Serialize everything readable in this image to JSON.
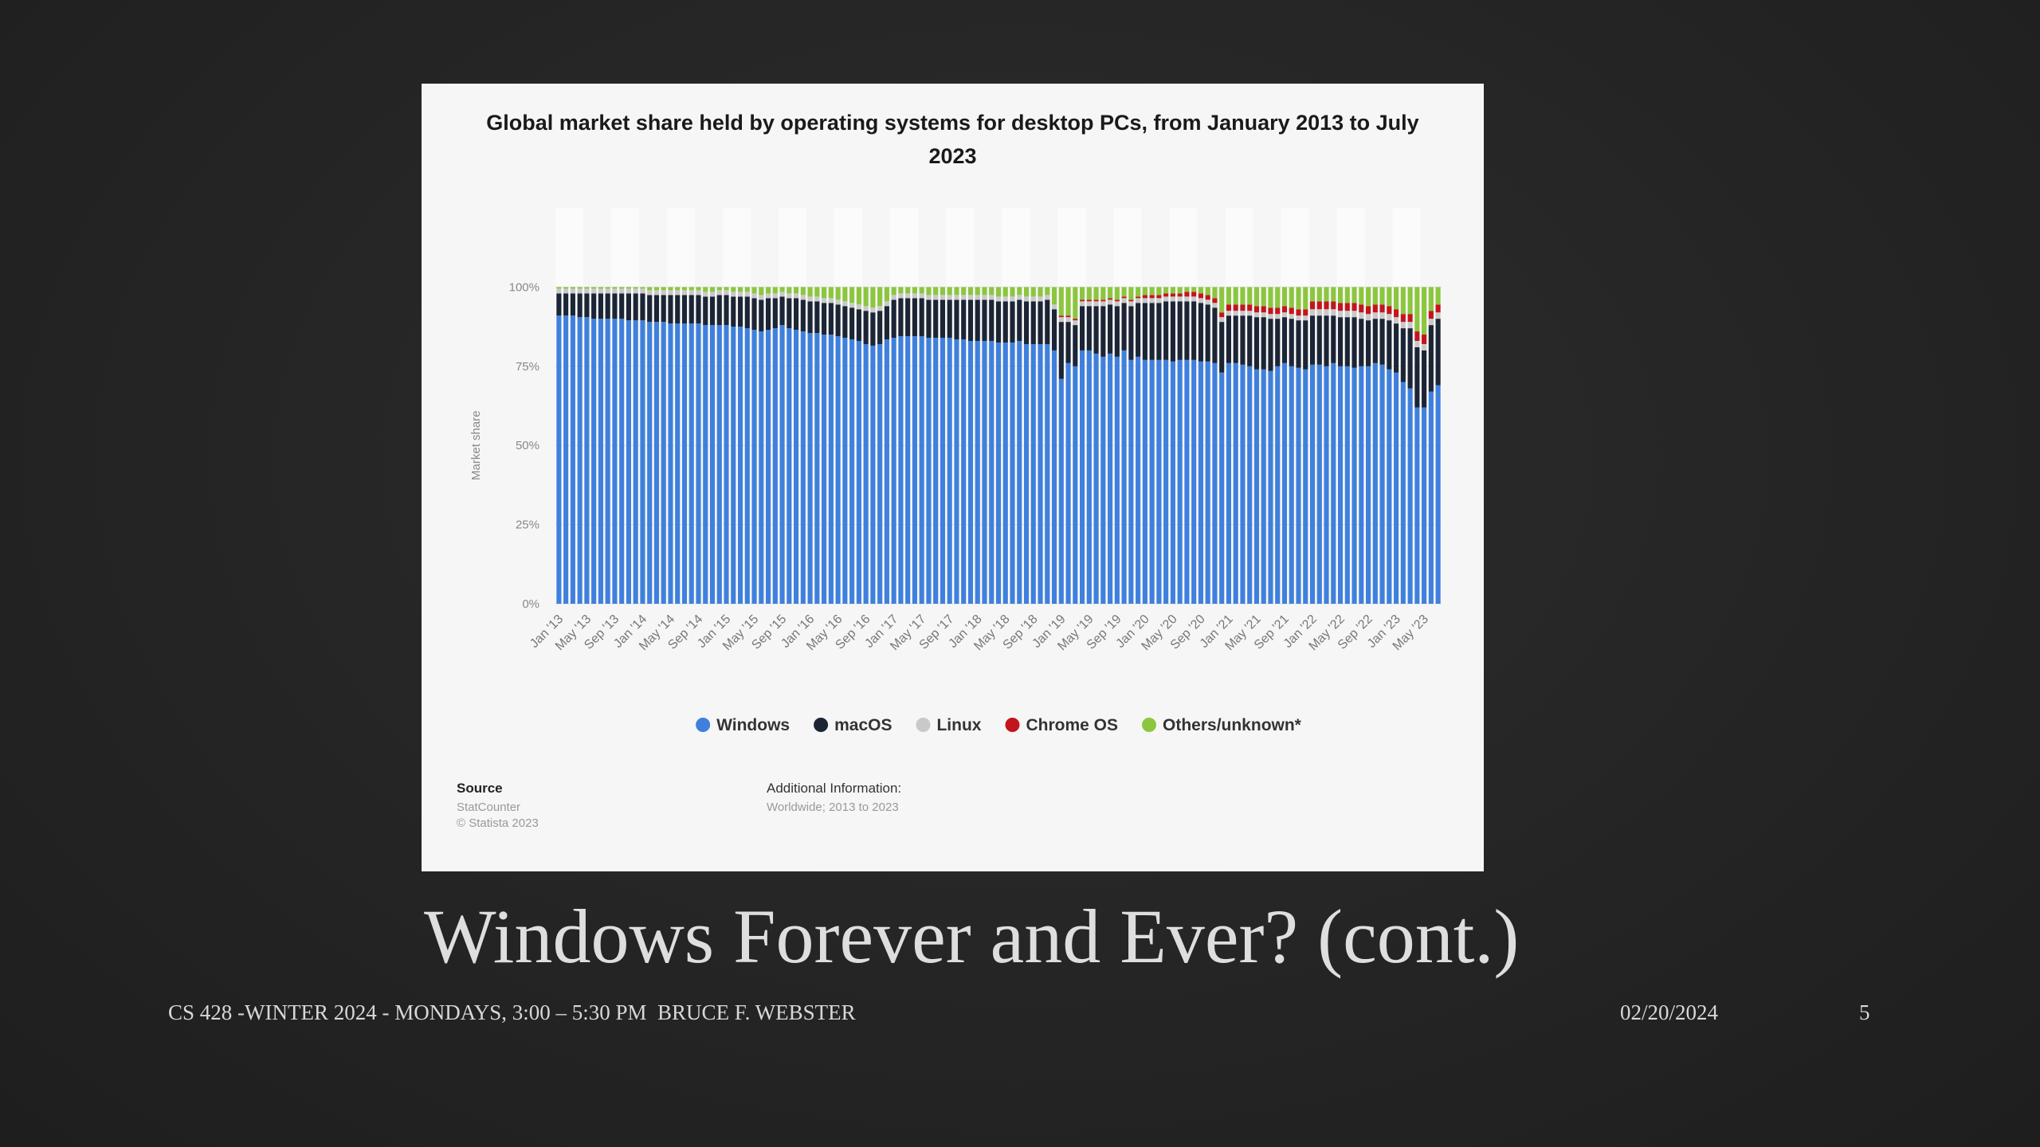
{
  "slide": {
    "title": "Windows Forever and Ever? (cont.)",
    "footer": "CS 428 -WINTER 2024 - MONDAYS, 3:00 – 5:30 PM  BRUCE F. WEBSTER",
    "date": "02/20/2024",
    "page": "5"
  },
  "chart_data": {
    "type": "stacked_bar",
    "title": "Global market share held by operating systems for desktop PCs, from January 2013 to July 2023",
    "ylabel": "Market share",
    "source_label": "Source",
    "source": [
      "StatCounter",
      "© Statista 2023"
    ],
    "additional_label": "Additional Information:",
    "additional": "Worldwide; 2013 to 2023",
    "ylim": [
      0,
      125
    ],
    "yticks": [
      {
        "value": 0,
        "label": "0%"
      },
      {
        "value": 25,
        "label": "25%"
      },
      {
        "value": 50,
        "label": "50%"
      },
      {
        "value": 75,
        "label": "75%"
      },
      {
        "value": 100,
        "label": "100%"
      }
    ],
    "categories": [
      "Jan '13",
      null,
      null,
      null,
      "May '13",
      null,
      null,
      null,
      "Sep '13",
      null,
      null,
      null,
      "Jan '14",
      null,
      null,
      null,
      "May '14",
      null,
      null,
      null,
      "Sep '14",
      null,
      null,
      null,
      "Jan '15",
      null,
      null,
      null,
      "May '15",
      null,
      null,
      null,
      "Sep '15",
      null,
      null,
      null,
      "Jan '16",
      null,
      null,
      null,
      "May '16",
      null,
      null,
      null,
      "Sep '16",
      null,
      null,
      null,
      "Jan '17",
      null,
      null,
      null,
      "May '17",
      null,
      null,
      null,
      "Sep '17",
      null,
      null,
      null,
      "Jan '18",
      null,
      null,
      null,
      "May '18",
      null,
      null,
      null,
      "Sep '18",
      null,
      null,
      null,
      "Jan '19",
      null,
      null,
      null,
      "May '19",
      null,
      null,
      null,
      "Sep '19",
      null,
      null,
      null,
      "Jan '20",
      null,
      null,
      null,
      "May '20",
      null,
      null,
      null,
      "Sep '20",
      null,
      null,
      null,
      "Jan '21",
      null,
      null,
      null,
      "May '21",
      null,
      null,
      null,
      "Sep '21",
      null,
      null,
      null,
      "Jan '22",
      null,
      null,
      null,
      "May '22",
      null,
      null,
      null,
      "Sep '22",
      null,
      null,
      null,
      "Jan '23",
      null,
      null,
      null,
      "May '23",
      null,
      null
    ],
    "series": [
      {
        "name": "Windows",
        "color": "#3f80dd",
        "values": [
          91,
          91,
          91,
          90.5,
          90.5,
          90,
          90,
          90,
          90,
          90,
          89.5,
          89.5,
          89.5,
          89,
          89,
          89,
          88.5,
          88.5,
          88.5,
          88.5,
          88.5,
          88,
          88,
          88,
          88,
          87.5,
          87.5,
          87,
          86.5,
          86,
          86.5,
          87,
          88,
          87,
          86.5,
          86,
          85.5,
          85.5,
          85,
          85,
          84.5,
          84,
          83.5,
          83,
          82,
          81.5,
          82,
          83.5,
          84,
          84.5,
          84.5,
          84.5,
          84.5,
          84,
          84,
          84,
          84,
          83.5,
          83.5,
          83,
          83,
          83,
          83,
          82.5,
          82.5,
          82.5,
          83,
          82,
          82,
          82,
          82,
          80,
          71,
          76,
          75,
          80,
          80,
          79,
          78,
          79,
          78,
          80,
          77,
          78,
          77,
          77,
          77,
          77,
          76.5,
          77,
          77,
          77,
          76.5,
          76.5,
          76,
          73,
          76,
          76,
          75.5,
          75,
          74,
          74,
          73.5,
          75,
          76,
          75,
          74.5,
          74,
          75.5,
          75.5,
          75,
          76,
          75,
          75,
          74.5,
          75,
          75,
          76,
          75.5,
          74,
          73,
          70,
          68,
          62,
          62,
          67,
          69
        ]
      },
      {
        "name": "macOS",
        "color": "#1b2535",
        "values": [
          7,
          7,
          7,
          7.5,
          7.5,
          8,
          8,
          8,
          8,
          8,
          8.5,
          8.5,
          8.5,
          8.5,
          8.5,
          8.5,
          9,
          9,
          9,
          9,
          9,
          9,
          9,
          9.5,
          9.5,
          9.5,
          9.5,
          10,
          10,
          10,
          10,
          9.5,
          9,
          9.5,
          10,
          10,
          10,
          10,
          10,
          10,
          10,
          10,
          10,
          10,
          10.5,
          10.5,
          10.5,
          10.5,
          12,
          12,
          12,
          12,
          12,
          12,
          12,
          12,
          12,
          12.5,
          12.5,
          13,
          13,
          13,
          13,
          13,
          13,
          13,
          13,
          13.5,
          13.5,
          13.5,
          14,
          13,
          18,
          13,
          13,
          14,
          14,
          15,
          16,
          15.5,
          16,
          15,
          17,
          17,
          18,
          18,
          18,
          18.5,
          19,
          18.5,
          18.5,
          18.5,
          18.5,
          18,
          17.5,
          16,
          15,
          15,
          15.5,
          16,
          16.5,
          16.5,
          16.5,
          15,
          14.5,
          15,
          15,
          15.5,
          15.5,
          15.5,
          16,
          15,
          15.5,
          15.5,
          16,
          15,
          14.5,
          14,
          14.5,
          15.5,
          15.5,
          17,
          19,
          19,
          18,
          21,
          21
        ]
      },
      {
        "name": "Linux",
        "color": "#c9c9c9",
        "values": [
          1.5,
          1.5,
          1.5,
          1.5,
          1.5,
          1.5,
          1.5,
          1.5,
          1.5,
          1.5,
          1.5,
          1.5,
          1.5,
          1.5,
          1.5,
          1.5,
          1.5,
          1.5,
          1.5,
          1.5,
          1.5,
          1.5,
          1.5,
          1.5,
          1.5,
          1.5,
          1.5,
          1.5,
          1.5,
          1.5,
          1.5,
          1.5,
          1.5,
          1.5,
          1.5,
          1.5,
          1.5,
          1.5,
          1.5,
          1.5,
          1.5,
          1.5,
          1.5,
          1.5,
          1.5,
          1.5,
          1.5,
          1.5,
          1.5,
          1.5,
          1.5,
          1.5,
          1.5,
          1.5,
          1.5,
          1.5,
          1.5,
          1.5,
          1.5,
          1.5,
          1.5,
          1.5,
          1.5,
          1.5,
          1.5,
          1.5,
          1.5,
          1.5,
          1.5,
          1.5,
          1.5,
          1.5,
          1.5,
          1.5,
          1.5,
          1.5,
          1.5,
          1.5,
          1.5,
          1.5,
          1.5,
          1.5,
          1.5,
          1.5,
          1.5,
          1.5,
          1.5,
          1.5,
          1.5,
          1.5,
          1.5,
          1.5,
          1.5,
          1.5,
          1.5,
          1.5,
          1.5,
          1.5,
          1.5,
          1.5,
          1.5,
          1.5,
          1.5,
          1.5,
          1.5,
          1.5,
          1.5,
          1.5,
          2,
          2,
          2,
          2,
          2,
          2,
          2,
          2,
          2,
          2,
          2,
          2,
          2,
          2,
          2,
          2,
          2,
          2,
          2
        ]
      },
      {
        "name": "Chrome OS",
        "color": "#c3151c",
        "values": [
          0,
          0,
          0,
          0,
          0,
          0,
          0,
          0,
          0,
          0,
          0,
          0,
          0,
          0,
          0,
          0,
          0,
          0,
          0,
          0,
          0,
          0,
          0,
          0,
          0,
          0,
          0,
          0,
          0,
          0,
          0,
          0,
          0,
          0,
          0,
          0,
          0,
          0,
          0,
          0,
          0,
          0,
          0,
          0,
          0,
          0,
          0,
          0,
          0,
          0,
          0,
          0,
          0,
          0,
          0,
          0,
          0,
          0,
          0,
          0,
          0,
          0,
          0,
          0,
          0,
          0,
          0,
          0,
          0,
          0,
          0,
          0,
          0.5,
          0.5,
          0.5,
          0.5,
          0.5,
          0.5,
          0.5,
          0.5,
          0.5,
          0.5,
          0.5,
          0.5,
          1,
          1,
          1,
          1,
          1,
          1,
          1.5,
          1.5,
          1.5,
          1.5,
          1.5,
          1.5,
          2,
          2,
          2,
          2,
          2,
          2,
          2,
          2,
          2,
          2,
          2,
          2,
          2.5,
          2.5,
          2.5,
          2.5,
          2.5,
          2.5,
          2.5,
          2.5,
          2.5,
          2.5,
          2.5,
          2.5,
          2.5,
          2.5,
          2.5,
          3,
          3,
          2.5,
          2.5
        ]
      },
      {
        "name": "Others/unknown*",
        "color": "#8cc63f",
        "values": [
          0.5,
          0.5,
          0.5,
          0.5,
          0.5,
          0.5,
          0.5,
          0.5,
          0.5,
          0.5,
          0.5,
          0.5,
          0.5,
          1,
          1,
          1,
          1,
          1,
          1,
          1,
          1,
          1.5,
          1.5,
          1,
          1,
          1.5,
          1.5,
          1.5,
          2,
          2.5,
          2,
          2,
          1.5,
          2,
          2,
          2.5,
          3,
          3,
          3.5,
          3.5,
          4,
          4.5,
          5,
          5.5,
          6,
          6.5,
          6,
          4.5,
          2.5,
          2,
          2,
          2,
          2,
          2.5,
          2.5,
          2.5,
          2.5,
          2.5,
          2.5,
          2.5,
          2.5,
          2.5,
          2.5,
          3,
          3,
          3,
          2.5,
          3,
          3,
          3,
          2.5,
          5.5,
          9,
          9,
          10,
          4,
          4,
          4,
          4,
          3.5,
          4,
          3,
          4,
          3,
          2.5,
          2.5,
          2.5,
          2,
          2,
          2,
          1.5,
          1.5,
          2,
          2.5,
          3.5,
          8,
          5.5,
          5.5,
          5.5,
          5.5,
          6,
          6,
          6.5,
          6.5,
          6,
          6.5,
          7,
          7,
          4.5,
          4.5,
          4.5,
          4.5,
          5,
          5,
          5,
          5.5,
          6,
          5.5,
          5.5,
          6,
          7,
          8.5,
          8.5,
          14,
          15,
          7.5,
          5.5
        ]
      }
    ]
  }
}
